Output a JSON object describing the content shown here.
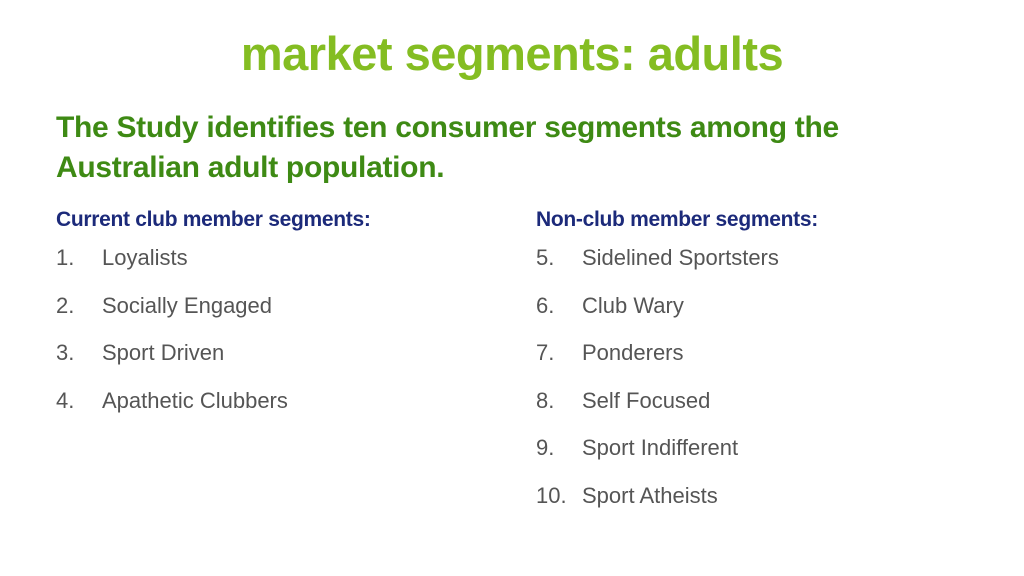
{
  "slide": {
    "title": "market segments: adults",
    "subtitle_line1": "The Study identifies ten consumer segments among the",
    "subtitle_line2": "Australian adult population.",
    "colors": {
      "title": "#84bd22",
      "subtitle": "#3e8a14",
      "heading": "#1c2a7a",
      "body": "#555555"
    }
  },
  "columns": [
    {
      "heading": "Current club member segments:",
      "items": [
        {
          "number": "1.",
          "label": "Loyalists"
        },
        {
          "number": "2.",
          "label": "Socially Engaged"
        },
        {
          "number": "3.",
          "label": "Sport Driven"
        },
        {
          "number": "4.",
          "label": "Apathetic Clubbers"
        }
      ]
    },
    {
      "heading": "Non-club member segments:",
      "items": [
        {
          "number": "5.",
          "label": "Sidelined Sportsters"
        },
        {
          "number": "6.",
          "label": "Club Wary"
        },
        {
          "number": "7.",
          "label": "Ponderers"
        },
        {
          "number": "8.",
          "label": "Self Focused"
        },
        {
          "number": "9.",
          "label": "Sport Indifferent"
        },
        {
          "number": "10.",
          "label": "Sport Atheists"
        }
      ]
    }
  ]
}
